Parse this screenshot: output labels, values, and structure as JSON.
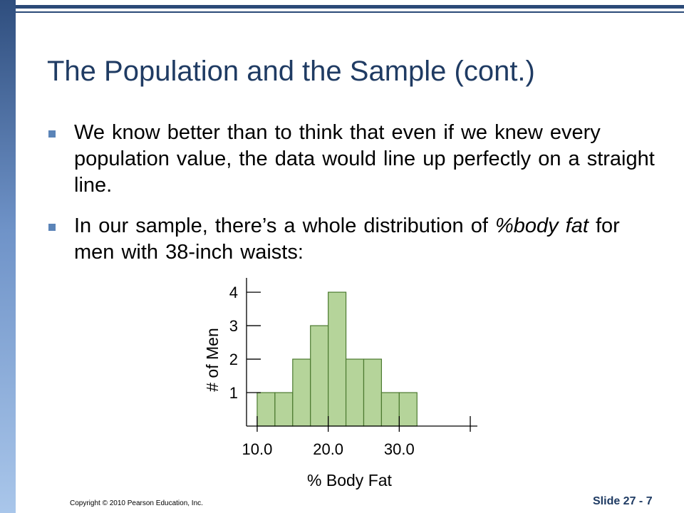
{
  "slide": {
    "title": "The Population and the Sample (cont.)",
    "bullets": [
      {
        "segments": [
          {
            "text": "We know better than to think that even if we knew every population value, the data would line up perfectly on a straight line.",
            "italic": false
          }
        ]
      },
      {
        "segments": [
          {
            "text": "In our sample, there’s a whole distribution of ",
            "italic": false
          },
          {
            "text": "%body fat",
            "italic": true
          },
          {
            "text": " for men with 38-inch waists:",
            "italic": false
          }
        ]
      }
    ],
    "copyright": "Copyright © 2010 Pearson Education, Inc.",
    "slide_number": "Slide 27 - 7",
    "colors": {
      "title": "#1f3b63",
      "bullet": "#5b84b8",
      "bar_fill": "#b5d49a",
      "bar_stroke": "#4c7a30"
    }
  },
  "chart_data": {
    "type": "bar",
    "subtype": "histogram",
    "bin_width": 2.5,
    "bins": [
      {
        "start": 10.0,
        "end": 12.5,
        "count": 1
      },
      {
        "start": 12.5,
        "end": 15.0,
        "count": 1
      },
      {
        "start": 15.0,
        "end": 17.5,
        "count": 2
      },
      {
        "start": 17.5,
        "end": 20.0,
        "count": 3
      },
      {
        "start": 20.0,
        "end": 22.5,
        "count": 4
      },
      {
        "start": 22.5,
        "end": 25.0,
        "count": 2
      },
      {
        "start": 25.0,
        "end": 27.5,
        "count": 2
      },
      {
        "start": 27.5,
        "end": 30.0,
        "count": 1
      },
      {
        "start": 30.0,
        "end": 32.5,
        "count": 1
      }
    ],
    "xlabel": "% Body Fat",
    "ylabel": "# of Men",
    "xticks": [
      10.0,
      20.0,
      30.0
    ],
    "xtick_labels": [
      "10.0",
      "20.0",
      "30.0"
    ],
    "extra_xtick": 40.0,
    "xlim": [
      8.5,
      41
    ],
    "yticks": [
      1,
      2,
      3,
      4
    ],
    "ytick_labels": [
      "1",
      "2",
      "3",
      "4"
    ],
    "ylim": [
      0,
      4.3
    ],
    "grid": false
  }
}
